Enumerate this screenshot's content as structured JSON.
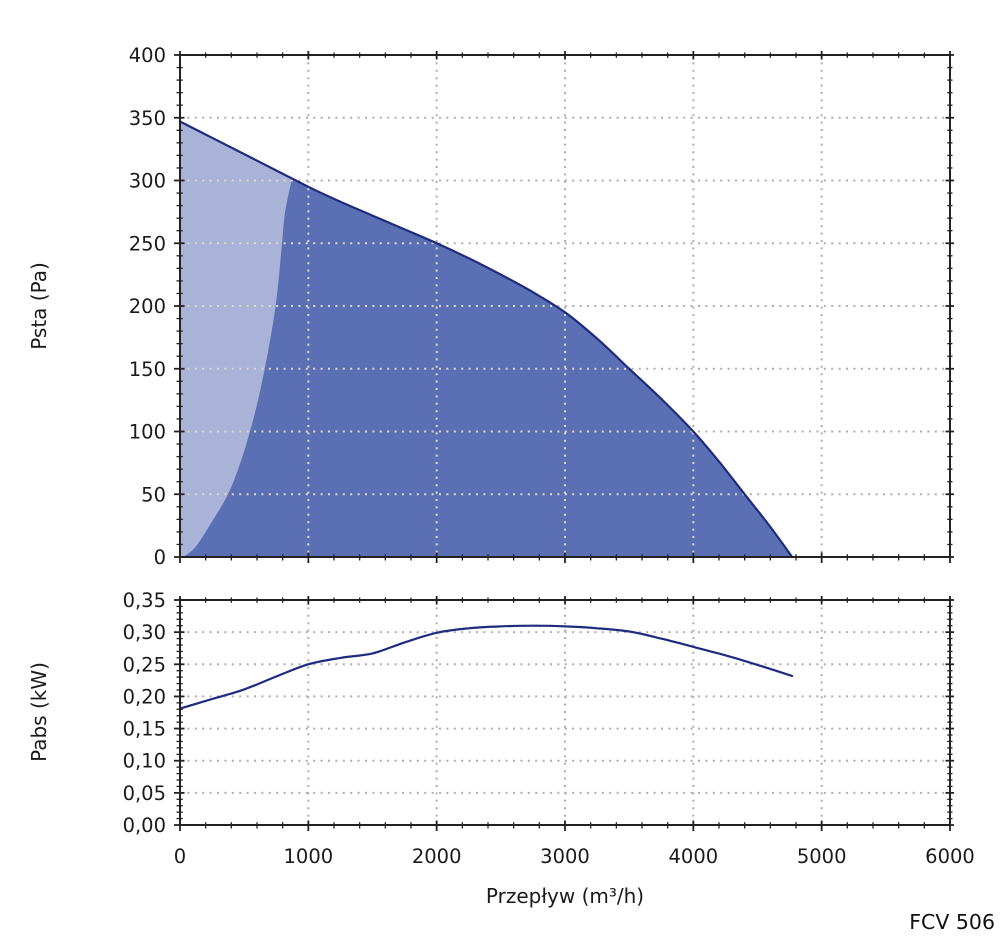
{
  "page": {
    "background": "#ffffff"
  },
  "footer": {
    "model_label": "FCV 506"
  },
  "colors": {
    "curve": "#1f2b7e",
    "fill_dark": "#5b70b4",
    "fill_light": "#a9b3d8",
    "grid_gray": "#aeaeae",
    "grid_cream": "#ded9c6",
    "frame": "#222222",
    "text": "#1b1b1b"
  },
  "chart_data": [
    {
      "type": "area",
      "title": "",
      "xlabel": "Przepływ (m³/h)",
      "ylabel": "Psta (Pa)",
      "xlim": [
        0,
        6000
      ],
      "ylim": [
        0,
        400
      ],
      "x_major_step": 1000,
      "x_minor_step": 200,
      "y_major_step": 50,
      "y_minor_step": 10,
      "grid": "dotted",
      "legend": "none",
      "x_tick_labels": [],
      "y_tick_labels": [
        "0",
        "50",
        "100",
        "150",
        "200",
        "250",
        "300",
        "350",
        "400"
      ],
      "series": [
        {
          "name": "static-pressure-curve",
          "role": "curve",
          "points": [
            [
              0,
              347
            ],
            [
              250,
              334
            ],
            [
              500,
              321
            ],
            [
              750,
              308
            ],
            [
              1000,
              295
            ],
            [
              1250,
              283
            ],
            [
              1500,
              272
            ],
            [
              1750,
              261
            ],
            [
              2000,
              250
            ],
            [
              2250,
              238
            ],
            [
              2500,
              225
            ],
            [
              2750,
              211
            ],
            [
              3000,
              195
            ],
            [
              3250,
              174
            ],
            [
              3500,
              150
            ],
            [
              3750,
              126
            ],
            [
              4000,
              100
            ],
            [
              4200,
              76
            ],
            [
              4400,
              50
            ],
            [
              4600,
              24
            ],
            [
              4770,
              0
            ]
          ]
        },
        {
          "name": "low-flow-limit-boundary",
          "role": "boundary",
          "points": [
            [
              30,
              0
            ],
            [
              120,
              8
            ],
            [
              230,
              25
            ],
            [
              374,
              50
            ],
            [
              470,
              75
            ],
            [
              545,
              100
            ],
            [
              608,
              125
            ],
            [
              660,
              150
            ],
            [
              706,
              175
            ],
            [
              745,
              200
            ],
            [
              772,
              225
            ],
            [
              795,
              250
            ],
            [
              815,
              272
            ],
            [
              848,
              290
            ],
            [
              880,
              301
            ]
          ]
        }
      ]
    },
    {
      "type": "line",
      "title": "",
      "xlabel": "Przepływ (m³/h)",
      "ylabel": "Pabs (kW)",
      "xlim": [
        0,
        6000
      ],
      "ylim": [
        0,
        0.35
      ],
      "x_major_step": 1000,
      "x_minor_step": 200,
      "y_major_step": 0.05,
      "y_minor_step": 0.01,
      "grid": "dotted",
      "legend": "none",
      "x_tick_labels": [
        "0",
        "1000",
        "2000",
        "3000",
        "4000",
        "5000",
        "6000"
      ],
      "y_tick_labels": [
        "0,00",
        "0,05",
        "0,10",
        "0,15",
        "0,20",
        "0,25",
        "0,30",
        "0,35"
      ],
      "series": [
        {
          "name": "absorbed-power-curve",
          "role": "curve",
          "points": [
            [
              0,
              0.181
            ],
            [
              250,
              0.196
            ],
            [
              500,
              0.211
            ],
            [
              750,
              0.231
            ],
            [
              1000,
              0.25
            ],
            [
              1250,
              0.26
            ],
            [
              1500,
              0.267
            ],
            [
              1750,
              0.284
            ],
            [
              2000,
              0.299
            ],
            [
              2250,
              0.306
            ],
            [
              2500,
              0.309
            ],
            [
              2750,
              0.31
            ],
            [
              3000,
              0.309
            ],
            [
              3250,
              0.306
            ],
            [
              3500,
              0.301
            ],
            [
              3750,
              0.29
            ],
            [
              4000,
              0.277
            ],
            [
              4250,
              0.264
            ],
            [
              4500,
              0.249
            ],
            [
              4770,
              0.232
            ]
          ]
        }
      ]
    }
  ]
}
